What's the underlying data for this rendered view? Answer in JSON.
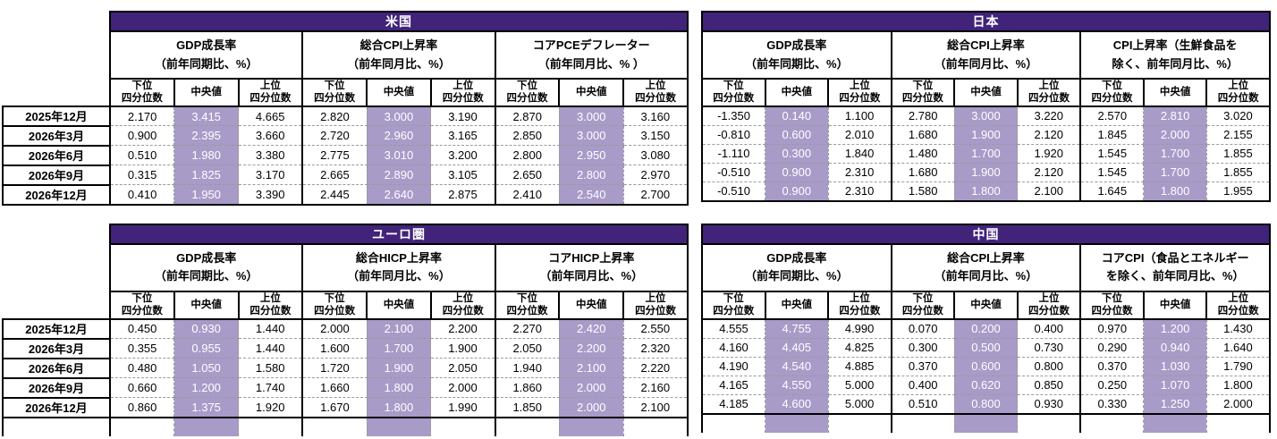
{
  "colors": {
    "header_bg": "#41237A",
    "header_text": "#FFFFFF",
    "median_bg": "#A89BC8",
    "median_text": "#FFFFFF",
    "strong_border": "#000000",
    "dashed_border": "#9A9A9A"
  },
  "subheaders": {
    "lower": [
      "下位",
      "四分位数"
    ],
    "median": [
      "中央値"
    ],
    "upper": [
      "上位",
      "四分位数"
    ]
  },
  "row_labels": [
    "2025年12月",
    "2026年3月",
    "2026年6月",
    "2026年9月",
    "2026年12月"
  ],
  "tables": [
    {
      "id": "us",
      "title": "米国",
      "has_row_labels": true,
      "groups": [
        [
          "GDP成長率",
          "（前年同期比、%）"
        ],
        [
          "総合CPI上昇率",
          "（前年同月比、%）"
        ],
        [
          "コアPCEデフレーター",
          "（前年同月比、% ）"
        ]
      ],
      "rows": [
        {
          "label": "2025年12月",
          "cells": [
            "2.170",
            "3.415",
            "4.665",
            "2.820",
            "3.000",
            "3.190",
            "2.870",
            "3.000",
            "3.160"
          ]
        },
        {
          "label": "2026年3月",
          "cells": [
            "0.900",
            "2.395",
            "3.660",
            "2.720",
            "2.960",
            "3.165",
            "2.850",
            "3.000",
            "3.150"
          ]
        },
        {
          "label": "2026年6月",
          "cells": [
            "0.510",
            "1.980",
            "3.380",
            "2.775",
            "3.010",
            "3.200",
            "2.800",
            "2.950",
            "3.080"
          ]
        },
        {
          "label": "2026年9月",
          "cells": [
            "0.315",
            "1.825",
            "3.170",
            "2.665",
            "2.890",
            "3.105",
            "2.650",
            "2.800",
            "2.970"
          ]
        },
        {
          "label": "2026年12月",
          "cells": [
            "0.410",
            "1.950",
            "3.390",
            "2.445",
            "2.640",
            "2.875",
            "2.410",
            "2.540",
            "2.700"
          ]
        }
      ]
    },
    {
      "id": "japan",
      "title": "日本",
      "has_row_labels": false,
      "groups": [
        [
          "GDP成長率",
          "（前年同期比、%）"
        ],
        [
          "総合CPI上昇率",
          "（前年同月比、%）"
        ],
        [
          "CPI上昇率（生鮮食品を",
          "除く、前年同月比、%）"
        ]
      ],
      "rows": [
        {
          "label": "2025年12月",
          "cells": [
            "-1.350",
            "0.140",
            "1.100",
            "2.780",
            "3.000",
            "3.220",
            "2.570",
            "2.810",
            "3.020"
          ]
        },
        {
          "label": "2026年3月",
          "cells": [
            "-0.810",
            "0.600",
            "2.010",
            "1.680",
            "1.900",
            "2.120",
            "1.845",
            "2.000",
            "2.155"
          ]
        },
        {
          "label": "2026年6月",
          "cells": [
            "-1.110",
            "0.300",
            "1.840",
            "1.480",
            "1.700",
            "1.920",
            "1.545",
            "1.700",
            "1.855"
          ]
        },
        {
          "label": "2026年9月",
          "cells": [
            "-0.510",
            "0.900",
            "2.310",
            "1.680",
            "1.900",
            "2.120",
            "1.545",
            "1.700",
            "1.855"
          ]
        },
        {
          "label": "2026年12月",
          "cells": [
            "-0.510",
            "0.900",
            "2.310",
            "1.580",
            "1.800",
            "2.100",
            "1.645",
            "1.800",
            "1.955"
          ]
        }
      ]
    },
    {
      "id": "eurozone",
      "title": "ユーロ圏",
      "has_row_labels": true,
      "groups": [
        [
          "GDP成長率",
          "（前年同期比、%）"
        ],
        [
          "総合HICP上昇率",
          "（前年同月比、%）"
        ],
        [
          "コアHICP上昇率",
          "（前年同月比、%）"
        ]
      ],
      "rows": [
        {
          "label": "2025年12月",
          "cells": [
            "0.450",
            "0.930",
            "1.440",
            "2.000",
            "2.100",
            "2.200",
            "2.270",
            "2.420",
            "2.550"
          ]
        },
        {
          "label": "2026年3月",
          "cells": [
            "0.355",
            "0.955",
            "1.440",
            "1.600",
            "1.700",
            "1.900",
            "2.050",
            "2.200",
            "2.320"
          ]
        },
        {
          "label": "2026年6月",
          "cells": [
            "0.480",
            "1.050",
            "1.580",
            "1.720",
            "1.900",
            "2.050",
            "1.940",
            "2.100",
            "2.220"
          ]
        },
        {
          "label": "2026年9月",
          "cells": [
            "0.660",
            "1.200",
            "1.740",
            "1.660",
            "1.800",
            "2.000",
            "1.860",
            "2.000",
            "2.160"
          ]
        },
        {
          "label": "2026年12月",
          "cells": [
            "0.860",
            "1.375",
            "1.920",
            "1.670",
            "1.800",
            "1.990",
            "1.850",
            "2.000",
            "2.100"
          ]
        },
        {
          "label": "",
          "cells": [
            "",
            "",
            "",
            "",
            "",
            "",
            "",
            "",
            ""
          ],
          "partial": true
        }
      ]
    },
    {
      "id": "china",
      "title": "中国",
      "has_row_labels": false,
      "groups": [
        [
          "GDP成長率",
          "（前年同期比、%）"
        ],
        [
          "総合CPI上昇率",
          "（前年同月比、%）"
        ],
        [
          "コアCPI（食品とエネルギー",
          "を除く、前年同月比、%）"
        ]
      ],
      "rows": [
        {
          "label": "2025年12月",
          "cells": [
            "4.555",
            "4.755",
            "4.990",
            "0.070",
            "0.200",
            "0.400",
            "0.970",
            "1.200",
            "1.430"
          ]
        },
        {
          "label": "2026年3月",
          "cells": [
            "4.160",
            "4.405",
            "4.825",
            "0.300",
            "0.500",
            "0.730",
            "0.290",
            "0.940",
            "1.640"
          ]
        },
        {
          "label": "2026年6月",
          "cells": [
            "4.190",
            "4.540",
            "4.885",
            "0.370",
            "0.600",
            "0.800",
            "0.370",
            "1.030",
            "1.790"
          ]
        },
        {
          "label": "2026年9月",
          "cells": [
            "4.165",
            "4.550",
            "5.000",
            "0.400",
            "0.620",
            "0.850",
            "0.250",
            "1.070",
            "1.800"
          ]
        },
        {
          "label": "2026年12月",
          "cells": [
            "4.185",
            "4.600",
            "5.000",
            "0.510",
            "0.800",
            "0.930",
            "0.330",
            "1.250",
            "2.000"
          ]
        },
        {
          "label": "",
          "cells": [
            "",
            "",
            "",
            "",
            "",
            "",
            "",
            "",
            ""
          ],
          "partial": true
        }
      ]
    }
  ]
}
